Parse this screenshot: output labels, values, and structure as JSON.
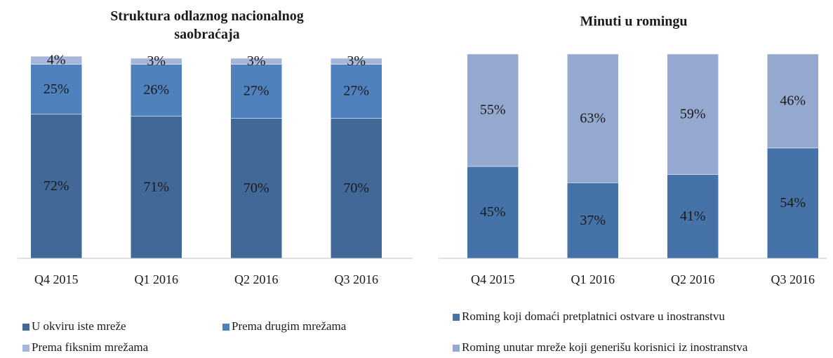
{
  "chart_data": [
    {
      "type": "bar",
      "stacked": true,
      "title": "Struktura odlaznog nacionalnog saobraćaja",
      "categories": [
        "Q4 2015",
        "Q1 2016",
        "Q2 2016",
        "Q3 2016"
      ],
      "ylim": [
        0,
        100
      ],
      "series": [
        {
          "name": "U okviru iste mreže",
          "color": "#426898",
          "values": [
            72,
            71,
            70,
            70
          ],
          "value_labels": [
            "72%",
            "71%",
            "70%",
            "70%"
          ]
        },
        {
          "name": "Prema drugim mrežama",
          "color": "#4f81bd",
          "values": [
            25,
            26,
            27,
            27
          ],
          "value_labels": [
            "25%",
            "26%",
            "27%",
            "27%"
          ]
        },
        {
          "name": "Prema fiksnim mrežama",
          "color": "#a6b6d9",
          "values": [
            4,
            3,
            3,
            3
          ],
          "value_labels": [
            "4%",
            "3%",
            "3%",
            "3%"
          ]
        }
      ]
    },
    {
      "type": "bar",
      "stacked": true,
      "title": "Minuti u romingu",
      "categories": [
        "Q4 2015",
        "Q1 2016",
        "Q2 2016",
        "Q3 2016"
      ],
      "ylim": [
        0,
        100
      ],
      "series": [
        {
          "name": "Roming koji domaći pretplatnici ostvare u inostranstvu",
          "color": "#4573a7",
          "values": [
            45,
            37,
            41,
            54
          ],
          "value_labels": [
            "45%",
            "37%",
            "41%",
            "54%"
          ]
        },
        {
          "name": "Roming unutar mreže koji generišu korisnici iz inostranstva",
          "color": "#95a9d0",
          "values": [
            55,
            63,
            59,
            46
          ],
          "value_labels": [
            "55%",
            "63%",
            "59%",
            "46%"
          ]
        }
      ]
    }
  ]
}
